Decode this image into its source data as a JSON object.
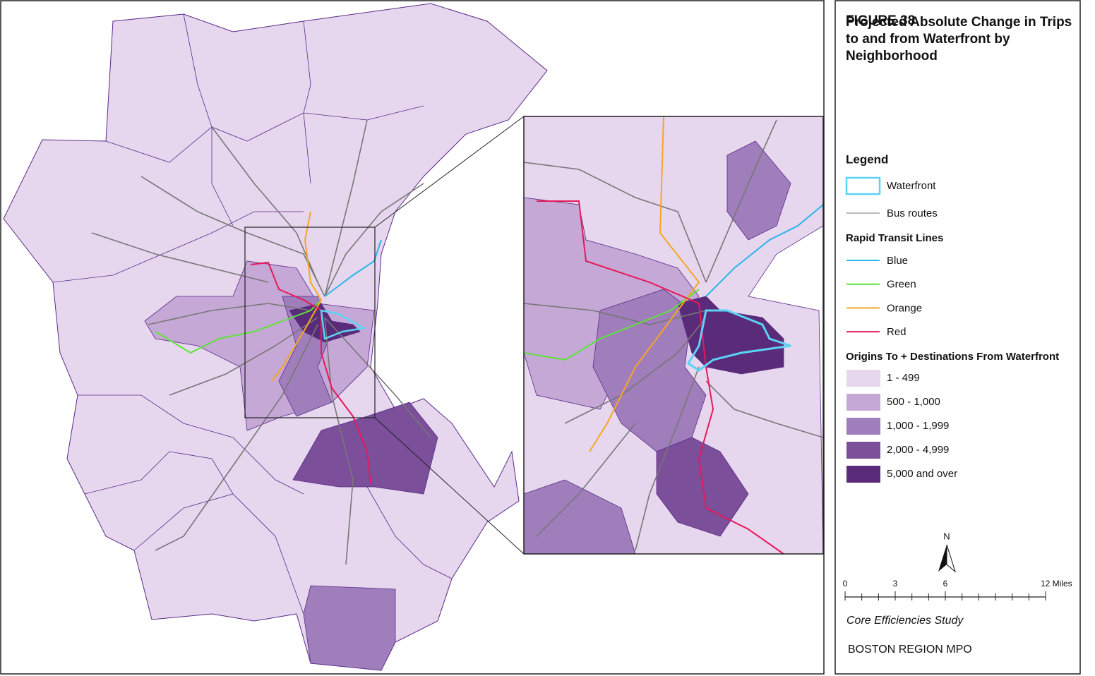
{
  "figure": {
    "label": "FIGURE 38",
    "title": "Projected Absolute Change in Trips to and from Waterfront by Neighborhood"
  },
  "legend": {
    "title": "Legend",
    "waterfront": {
      "label": "Waterfront",
      "color": "#5bd3f5"
    },
    "bus": {
      "label": "Bus routes",
      "color": "#777777"
    },
    "rapid_transit": {
      "title": "Rapid Transit Lines",
      "lines": [
        {
          "label": "Blue",
          "color": "#29b6e8"
        },
        {
          "label": "Green",
          "color": "#5ee23a"
        },
        {
          "label": "Orange",
          "color": "#f5a623"
        },
        {
          "label": "Red",
          "color": "#e6195a"
        }
      ]
    },
    "origins": {
      "title": "Origins To + Destinations From Waterfront",
      "classes": [
        {
          "label": "1 - 499",
          "color": "#e6d7ef"
        },
        {
          "label": "500 - 1,000",
          "color": "#c5a8d6"
        },
        {
          "label": "1,000 - 1,999",
          "color": "#a07dbb"
        },
        {
          "label": "2,000 - 4,999",
          "color": "#7b4f9a"
        },
        {
          "label": "5,000 and over",
          "color": "#5a2b78"
        }
      ]
    }
  },
  "north_arrow": "N",
  "scale_bar": [
    "0",
    "3",
    "6",
    "12 Miles"
  ],
  "footer": {
    "study": "Core Efficiencies Study",
    "agency": "BOSTON REGION MPO"
  }
}
